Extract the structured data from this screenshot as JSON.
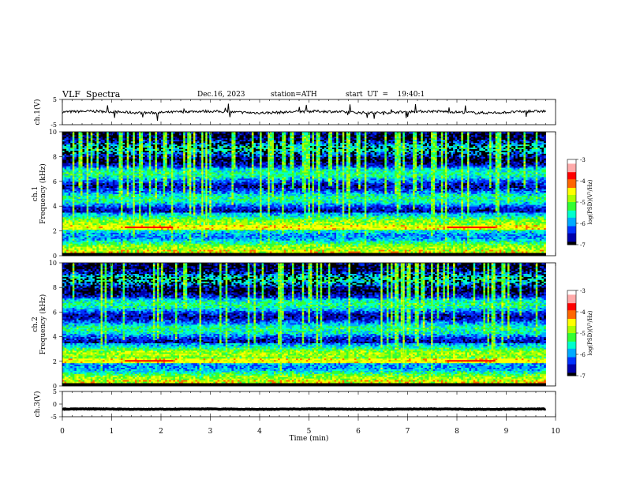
{
  "header": {
    "title": "VLF  Spectra",
    "date": "Dec.16, 2023",
    "station": "station=ATH",
    "start": "start  UT  =    19:40:1"
  },
  "chart_data": [
    {
      "type": "line",
      "panel": "ch1-waveform",
      "ylabel": "ch.1(V)",
      "ylim": [
        -5,
        5
      ],
      "yticks": [
        "5",
        "-5"
      ],
      "xlim": [
        0,
        10
      ],
      "series": [
        {
          "color": "#000000",
          "baseline": 0,
          "noise_amplitude": 1.0
        }
      ]
    },
    {
      "type": "heatmap",
      "panel": "ch1-spectrogram",
      "ylabel": "ch.1\nFrequency  (kHz)",
      "ylim": [
        0,
        10
      ],
      "yticks": [
        "0",
        "2",
        "4",
        "6",
        "8",
        "10"
      ],
      "xlim": [
        0,
        9.8
      ],
      "colorbar": {
        "label": "log(PSD)(V²/Hz)",
        "ticks": [
          "-3",
          "-4",
          "-5",
          "-6",
          "-7"
        ],
        "range": [
          -7,
          -3
        ]
      },
      "bright_band_kHz": 2.2
    },
    {
      "type": "heatmap",
      "panel": "ch2-spectrogram",
      "ylabel": "ch.2\nFrequency  (kHz)",
      "ylim": [
        0,
        10
      ],
      "yticks": [
        "0",
        "2",
        "4",
        "6",
        "8",
        "10"
      ],
      "xlim": [
        0,
        9.8
      ],
      "colorbar": {
        "label": "log(PSD)(V²/Hz)",
        "ticks": [
          "-3",
          "-4",
          "-5",
          "-6",
          "-7"
        ],
        "range": [
          -7,
          -3
        ]
      },
      "bright_band_kHz": 2.0
    },
    {
      "type": "line",
      "panel": "ch3-waveform",
      "ylabel": "ch.3(V)",
      "ylim": [
        -5,
        5
      ],
      "yticks": [
        "5",
        "0",
        "-5"
      ],
      "xlim": [
        0,
        10
      ],
      "series": [
        {
          "color": "#000000",
          "baseline": -2,
          "noise_amplitude": 0.2
        }
      ]
    }
  ],
  "xaxis": {
    "xlabel": "Time  (min)",
    "ticks": [
      "0",
      "1",
      "2",
      "3",
      "4",
      "5",
      "6",
      "7",
      "8",
      "9",
      "10"
    ],
    "range": [
      0,
      10
    ]
  },
  "colorscale": [
    "#000000",
    "#0000aa",
    "#0033ff",
    "#00aaff",
    "#00ffcc",
    "#33ff33",
    "#aaff00",
    "#ffff00",
    "#ff6600",
    "#ff0000",
    "#ffaaaa",
    "#ffffff"
  ]
}
